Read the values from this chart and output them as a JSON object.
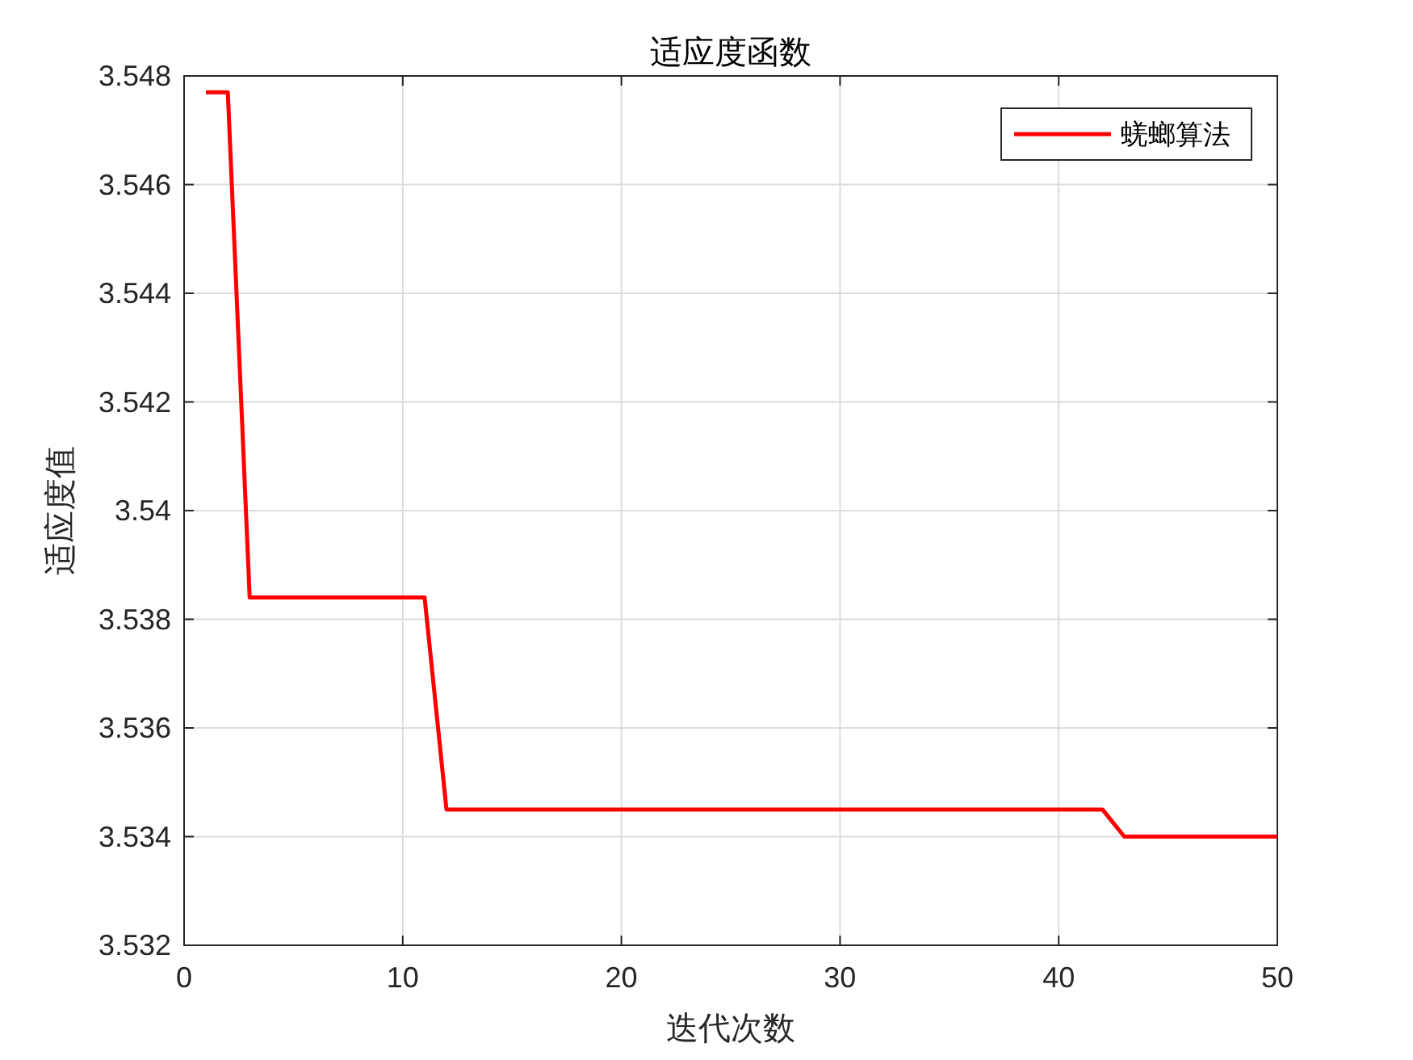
{
  "chart_data": {
    "type": "line",
    "title": "适应度函数",
    "xlabel": "迭代次数",
    "ylabel": "适应度值",
    "x": [
      1,
      2,
      3,
      4,
      5,
      6,
      7,
      8,
      9,
      10,
      11,
      12,
      13,
      14,
      15,
      16,
      17,
      18,
      19,
      20,
      21,
      22,
      23,
      24,
      25,
      26,
      27,
      28,
      29,
      30,
      31,
      32,
      33,
      34,
      35,
      36,
      37,
      38,
      39,
      40,
      41,
      42,
      43,
      44,
      45,
      46,
      47,
      48,
      49,
      50
    ],
    "series": [
      {
        "name": "蜣螂算法",
        "color": "#ff0000",
        "values": [
          3.5477,
          3.5477,
          3.5384,
          3.5384,
          3.5384,
          3.5384,
          3.5384,
          3.5384,
          3.5384,
          3.5384,
          3.5384,
          3.5345,
          3.5345,
          3.5345,
          3.5345,
          3.5345,
          3.5345,
          3.5345,
          3.5345,
          3.5345,
          3.5345,
          3.5345,
          3.5345,
          3.5345,
          3.5345,
          3.5345,
          3.5345,
          3.5345,
          3.5345,
          3.5345,
          3.5345,
          3.5345,
          3.5345,
          3.5345,
          3.5345,
          3.5345,
          3.5345,
          3.5345,
          3.5345,
          3.5345,
          3.5345,
          3.5345,
          3.534,
          3.534,
          3.534,
          3.534,
          3.534,
          3.534,
          3.534,
          3.534
        ]
      }
    ],
    "xlim": [
      0,
      50
    ],
    "xticks": [
      0,
      10,
      20,
      30,
      40,
      50
    ],
    "ylim": [
      3.532,
      3.548
    ],
    "yticks": [
      3.532,
      3.534,
      3.536,
      3.538,
      3.54,
      3.542,
      3.544,
      3.546,
      3.548
    ],
    "grid": true,
    "legend": "top right",
    "marker": "none",
    "line_style": "solid"
  }
}
